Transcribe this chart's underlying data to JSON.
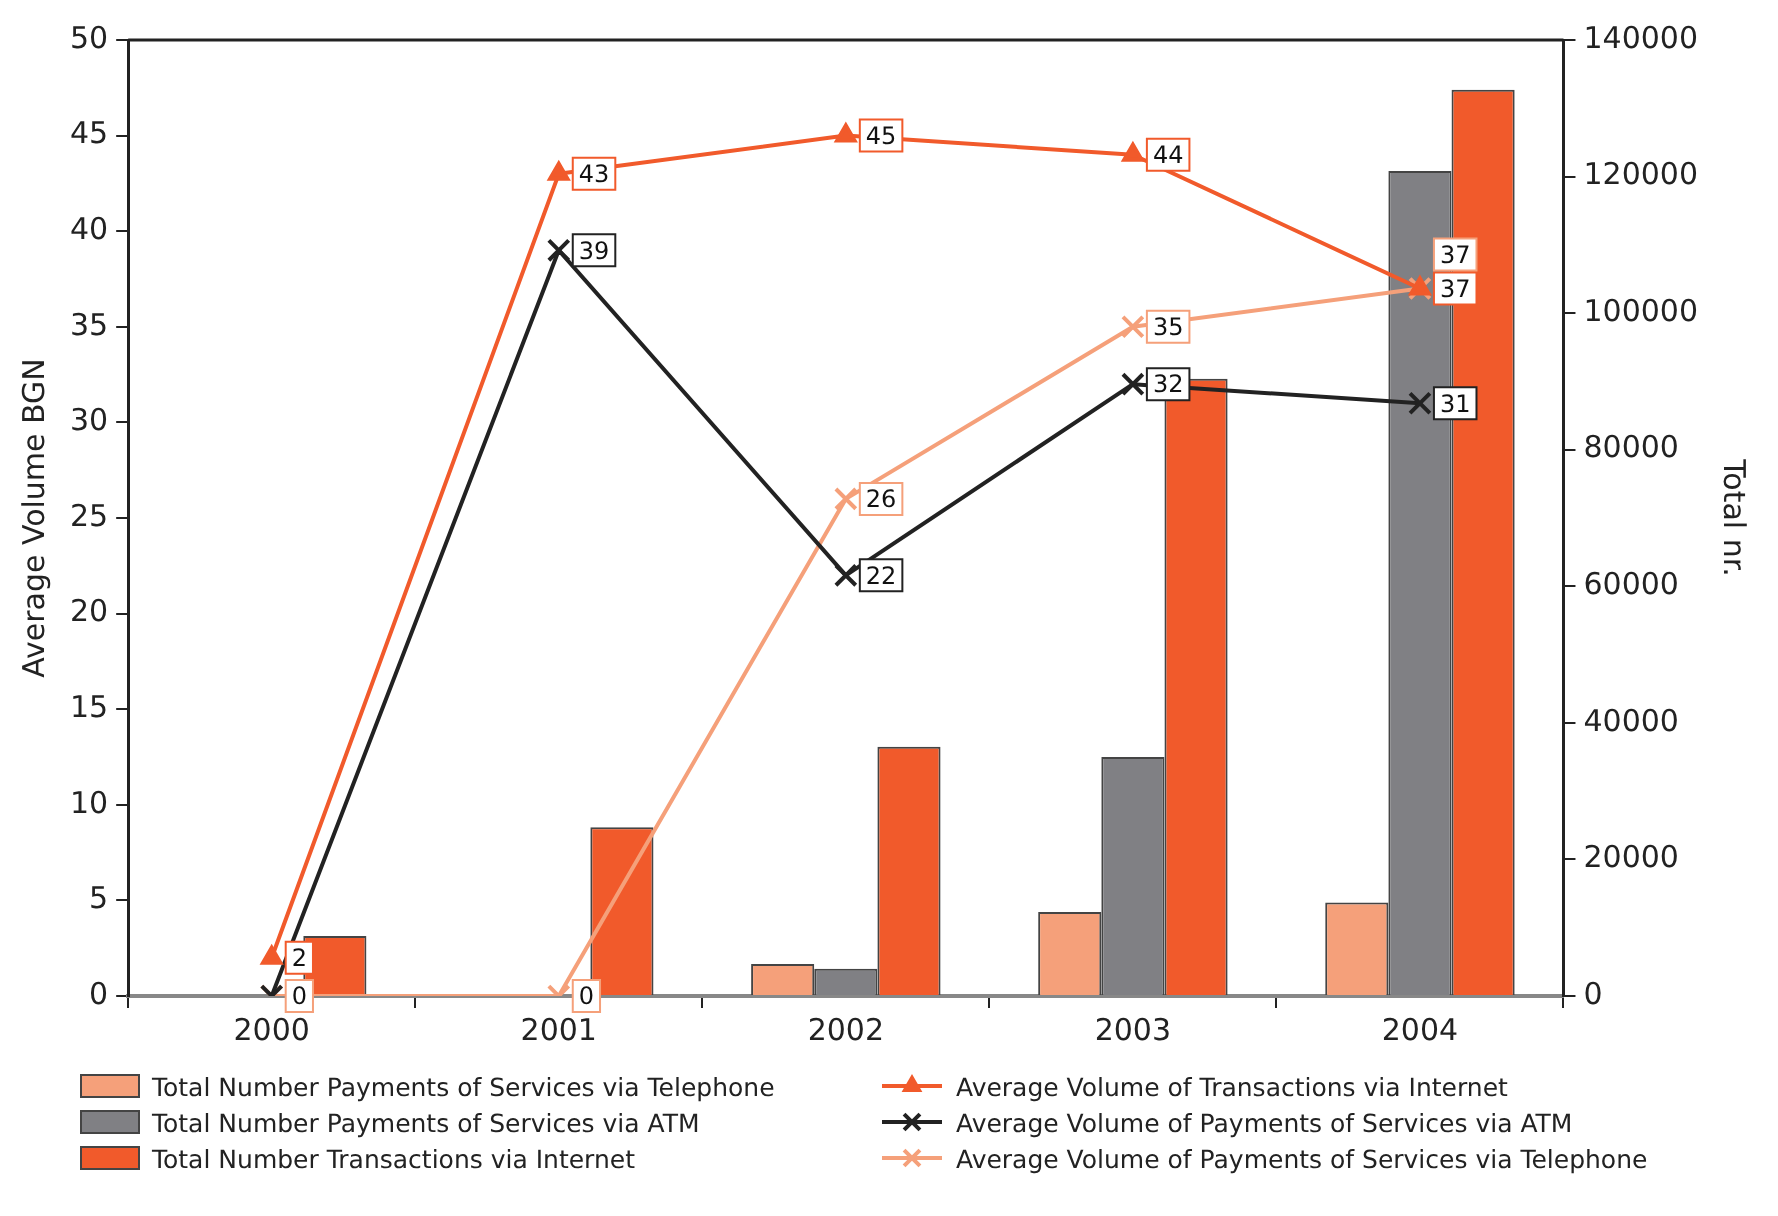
{
  "chart_data": {
    "type": "bar",
    "categories": [
      "2000",
      "2001",
      "2002",
      "2003",
      "2004"
    ],
    "ylabel": "Average Volume BGN",
    "y2label": "Total nr.",
    "ylim": [
      0,
      50
    ],
    "yticks": [
      0,
      5,
      10,
      15,
      20,
      25,
      30,
      35,
      40,
      45,
      50
    ],
    "y2lim": [
      0,
      140000
    ],
    "y2ticks": [
      0,
      20000,
      40000,
      60000,
      80000,
      100000,
      120000,
      140000
    ],
    "grid": false,
    "legend": "bottom",
    "series": [
      {
        "name": "Total Number Payments of Services via Telephone",
        "axis": "y2",
        "color": "#f5a07a",
        "values": [
          null,
          null,
          4700,
          12300,
          13700
        ]
      },
      {
        "name": "Total Number Payments of Services via ATM",
        "axis": "y2",
        "color": "#808084",
        "values": [
          null,
          null,
          4000,
          35000,
          120800
        ]
      },
      {
        "name": "Total Number Transactions via Internet",
        "axis": "y2",
        "color": "#f15a2b",
        "values": [
          8800,
          24700,
          36500,
          90400,
          132700
        ]
      },
      {
        "name": "Average Volume of Transactions via Internet",
        "type": "line",
        "marker": "triangle",
        "color": "#f15a2b",
        "values": [
          2,
          43,
          45,
          44,
          37
        ],
        "value_labels": [
          "2",
          "43",
          "45",
          "44",
          "37"
        ]
      },
      {
        "name": "Average Volume of Payments of Services via ATM",
        "type": "line",
        "marker": "cross",
        "color": "#222222",
        "values": [
          0,
          39,
          22,
          32,
          31
        ],
        "value_labels": [
          null,
          "39",
          "22",
          "32",
          "31"
        ]
      },
      {
        "name": "Average Volume of Payments of Services via Telephone",
        "type": "line",
        "marker": "cross",
        "color": "#f5a07a",
        "values": [
          0,
          0,
          26,
          35,
          37
        ],
        "value_labels": [
          "0",
          "0",
          "26",
          "35",
          "37"
        ]
      }
    ]
  }
}
